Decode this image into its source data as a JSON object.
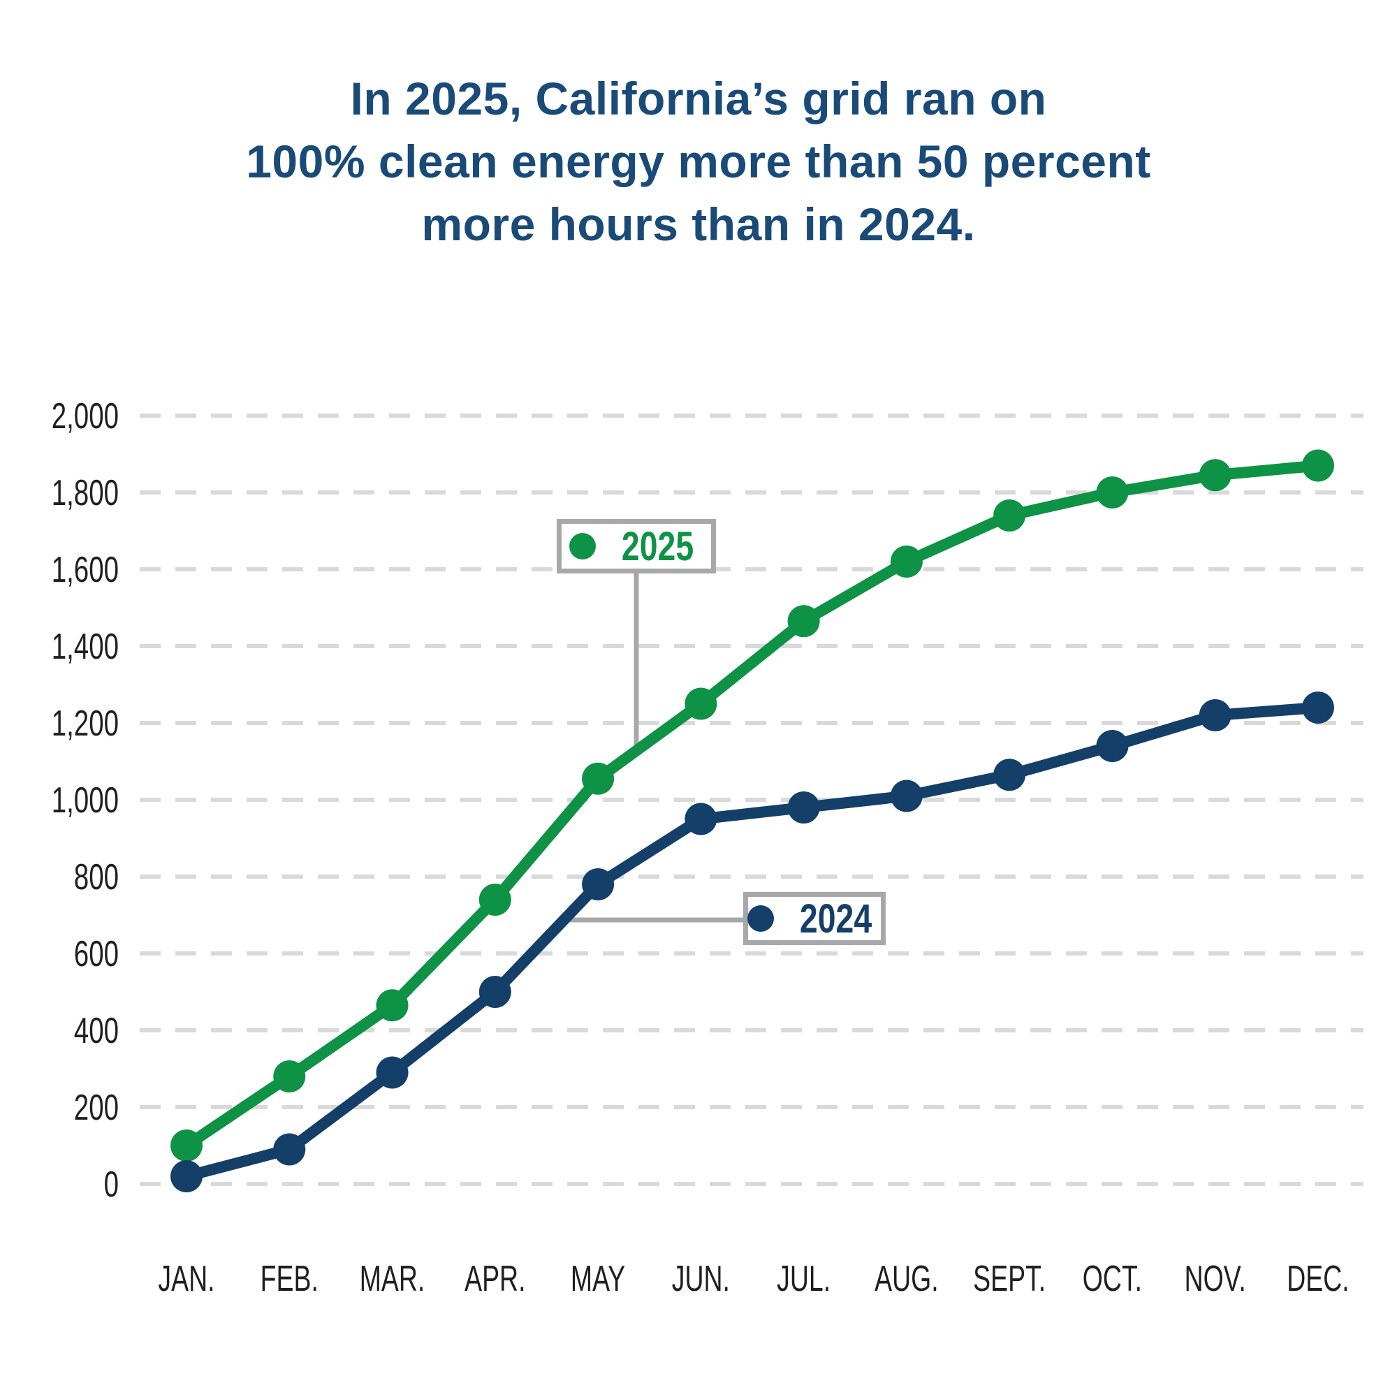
{
  "title": {
    "lines": [
      "In 2025, California’s grid ran on",
      "100% clean energy more than 50 percent",
      "more hours than in 2024."
    ]
  },
  "colors": {
    "title_text": "#1a4b78",
    "green_2025": "#0e9245",
    "navy_2024": "#133f68",
    "axis_text": "#1f1f1f",
    "gridline": "#d9d9d9",
    "legend_border": "#a6a8ab",
    "background": "#ffffff"
  },
  "chart_data": {
    "type": "line",
    "title": "In 2025, California’s grid ran on 100% clean energy more than 50 percent more hours than in 2024.",
    "xlabel": "",
    "ylabel": "",
    "categories": [
      "JAN.",
      "FEB.",
      "MAR.",
      "APR.",
      "MAY",
      "JUN.",
      "JUL.",
      "AUG.",
      "SEPT.",
      "OCT.",
      "NOV.",
      "DEC."
    ],
    "series": [
      {
        "name": "2025",
        "color": "#0e9245",
        "values": [
          100,
          280,
          465,
          740,
          1055,
          1250,
          1465,
          1620,
          1740,
          1800,
          1845,
          1870
        ]
      },
      {
        "name": "2024",
        "color": "#133f68",
        "values": [
          20,
          90,
          290,
          500,
          780,
          950,
          980,
          1010,
          1065,
          1140,
          1220,
          1240
        ]
      }
    ],
    "ylim": [
      0,
      2000
    ],
    "ytick_step": 200,
    "ytick_labels": [
      "0",
      "200",
      "400",
      "600",
      "800",
      "1,000",
      "1,200",
      "1,400",
      "1,600",
      "1,800",
      "2,000"
    ],
    "grid": "horizontal-dashed",
    "legend_position": "call-out boxes with gray leader lines pointing at each line (2025 above, 2024 below)"
  }
}
